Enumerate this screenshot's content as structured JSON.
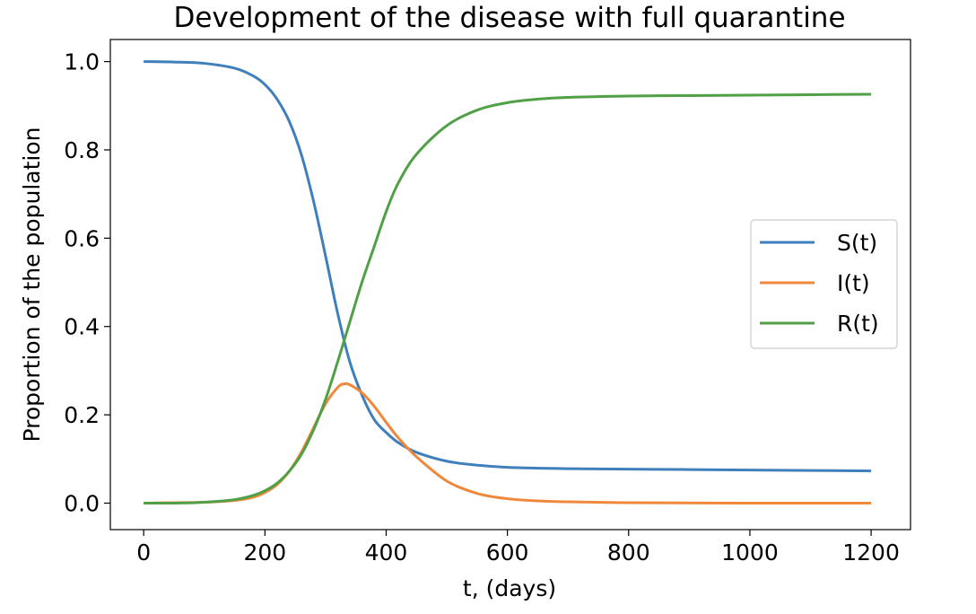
{
  "chart_data": {
    "type": "line",
    "title": "Development of the disease with full quarantine",
    "xlabel": "t, (days)",
    "ylabel": "Proportion of the population",
    "xlim": [
      -55,
      1265
    ],
    "ylim": [
      -0.06,
      1.05
    ],
    "xticks": [
      0,
      200,
      400,
      600,
      800,
      1000,
      1200
    ],
    "yticks": [
      0.0,
      0.2,
      0.4,
      0.6,
      0.8,
      1.0
    ],
    "xtick_labels": [
      "0",
      "200",
      "400",
      "600",
      "800",
      "1000",
      "1200"
    ],
    "ytick_labels": [
      "0.0",
      "0.2",
      "0.4",
      "0.6",
      "0.8",
      "1.0"
    ],
    "grid": false,
    "legend": "center-right",
    "series": [
      {
        "name": "S(t)",
        "color": "#3f7fbc",
        "x": [
          0,
          50,
          100,
          150,
          180,
          200,
          220,
          240,
          260,
          280,
          300,
          320,
          340,
          360,
          380,
          400,
          420,
          450,
          500,
          550,
          600,
          700,
          800,
          900,
          1000,
          1100,
          1200
        ],
        "y": [
          1.0,
          0.999,
          0.996,
          0.985,
          0.968,
          0.948,
          0.915,
          0.865,
          0.79,
          0.685,
          0.56,
          0.43,
          0.32,
          0.245,
          0.19,
          0.16,
          0.137,
          0.115,
          0.095,
          0.086,
          0.081,
          0.078,
          0.077,
          0.076,
          0.075,
          0.074,
          0.073
        ]
      },
      {
        "name": "I(t)",
        "color": "#f0883c",
        "x": [
          0,
          50,
          100,
          150,
          180,
          200,
          220,
          240,
          260,
          280,
          300,
          320,
          330,
          340,
          360,
          380,
          400,
          420,
          450,
          500,
          550,
          600,
          650,
          700,
          800,
          1000,
          1200
        ],
        "y": [
          0.0,
          0.001,
          0.002,
          0.006,
          0.013,
          0.024,
          0.042,
          0.072,
          0.115,
          0.17,
          0.225,
          0.262,
          0.27,
          0.268,
          0.25,
          0.22,
          0.183,
          0.148,
          0.105,
          0.05,
          0.022,
          0.01,
          0.005,
          0.003,
          0.001,
          0.0,
          0.0
        ]
      },
      {
        "name": "R(t)",
        "color": "#4fa046",
        "x": [
          0,
          50,
          100,
          150,
          180,
          200,
          220,
          240,
          260,
          280,
          300,
          320,
          340,
          360,
          380,
          400,
          420,
          450,
          500,
          550,
          600,
          650,
          700,
          800,
          900,
          1000,
          1100,
          1200
        ],
        "y": [
          0.0,
          0.0,
          0.002,
          0.008,
          0.017,
          0.028,
          0.045,
          0.072,
          0.11,
          0.165,
          0.235,
          0.32,
          0.41,
          0.5,
          0.58,
          0.66,
          0.725,
          0.79,
          0.855,
          0.89,
          0.907,
          0.915,
          0.919,
          0.922,
          0.923,
          0.924,
          0.925,
          0.926
        ]
      }
    ]
  }
}
